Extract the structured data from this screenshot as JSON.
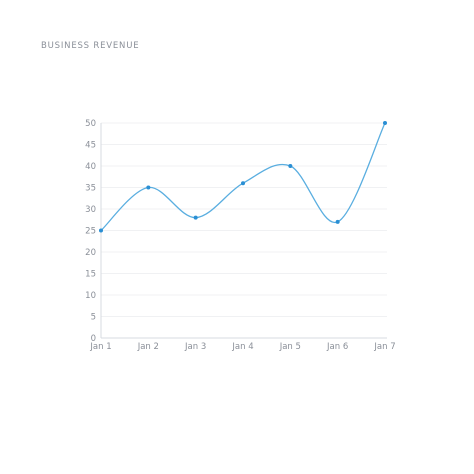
{
  "chart_data": {
    "type": "line",
    "title": "BUSINESS REVENUE",
    "categories": [
      "Jan 1",
      "Jan 2",
      "Jan 3",
      "Jan 4",
      "Jan 5",
      "Jan 6",
      "Jan 7"
    ],
    "series": [
      {
        "values": [
          25,
          35,
          28,
          36,
          40,
          27,
          50
        ]
      }
    ],
    "y_ticks": [
      "0",
      "5",
      "10",
      "15",
      "20",
      "25",
      "30",
      "35",
      "40",
      "45",
      "50"
    ],
    "ylim": [
      0,
      50
    ],
    "xlabel": "",
    "ylabel": "",
    "grid": true,
    "colors": {
      "line": "#5aaee0",
      "point": "#2a8fd4",
      "grid": "#f0f1f3",
      "axis": "#d7dbe0"
    }
  }
}
